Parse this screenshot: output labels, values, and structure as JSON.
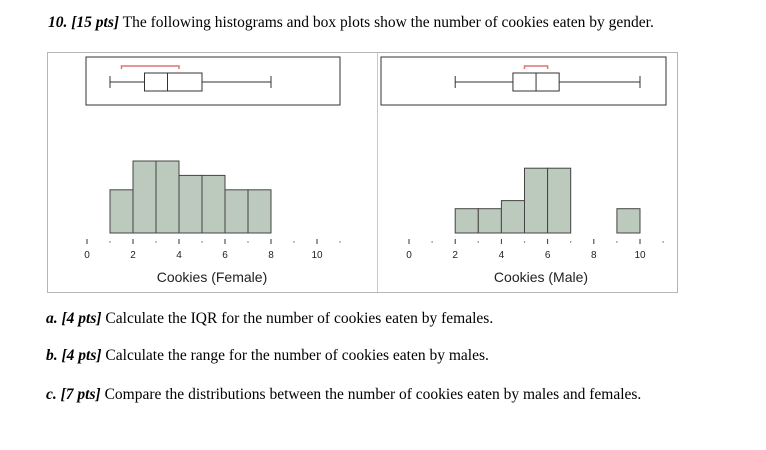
{
  "header": {
    "number": "10.",
    "points": "[15 pts]",
    "text": " The following histograms and box plots show the number of cookies eaten by gender."
  },
  "chart_data": [
    {
      "type": "histogram_with_boxplot",
      "xlabel": "Cookies (Female)",
      "xlim": [
        0,
        11
      ],
      "x_ticks": [
        0,
        2,
        4,
        6,
        8,
        10
      ],
      "bin_width": 1,
      "bins": [
        {
          "start": 1,
          "end": 2,
          "count": 3
        },
        {
          "start": 2,
          "end": 3,
          "count": 5
        },
        {
          "start": 3,
          "end": 4,
          "count": 5
        },
        {
          "start": 4,
          "end": 5,
          "count": 4
        },
        {
          "start": 5,
          "end": 6,
          "count": 4
        },
        {
          "start": 6,
          "end": 7,
          "count": 3
        },
        {
          "start": 7,
          "end": 8,
          "count": 3
        }
      ],
      "boxplot": {
        "min": 1,
        "q1": 2.5,
        "median": 3.5,
        "q3": 5,
        "max": 8
      },
      "colors": {
        "bar_fill": "#bccabd",
        "bar_edge": "#444444",
        "highlight": "#e0707a"
      }
    },
    {
      "type": "histogram_with_boxplot",
      "xlabel": "Cookies (Male)",
      "xlim": [
        0,
        11
      ],
      "x_ticks": [
        0,
        2,
        4,
        6,
        8,
        10
      ],
      "bin_width": 1,
      "bins": [
        {
          "start": 2,
          "end": 3,
          "count": 3
        },
        {
          "start": 3,
          "end": 4,
          "count": 3
        },
        {
          "start": 4,
          "end": 5,
          "count": 4
        },
        {
          "start": 5,
          "end": 6,
          "count": 8
        },
        {
          "start": 6,
          "end": 7,
          "count": 8
        },
        {
          "start": 9,
          "end": 10,
          "count": 3
        }
      ],
      "boxplot": {
        "min": 2,
        "q1": 4.5,
        "median": 5.5,
        "q3": 6.5,
        "max": 10
      },
      "colors": {
        "bar_fill": "#bccabd",
        "bar_edge": "#444444",
        "highlight": "#e0707a"
      }
    }
  ],
  "questions": [
    {
      "label": "a.",
      "points": "[4 pts]",
      "text": " Calculate the IQR for the number of cookies eaten by females."
    },
    {
      "label": "b.",
      "points": "[4 pts]",
      "text": " Calculate the range for the number of cookies eaten by males."
    },
    {
      "label": "c.",
      "points": "[7 pts]",
      "text": " Compare the distributions between the number of cookies eaten by males and females."
    }
  ]
}
